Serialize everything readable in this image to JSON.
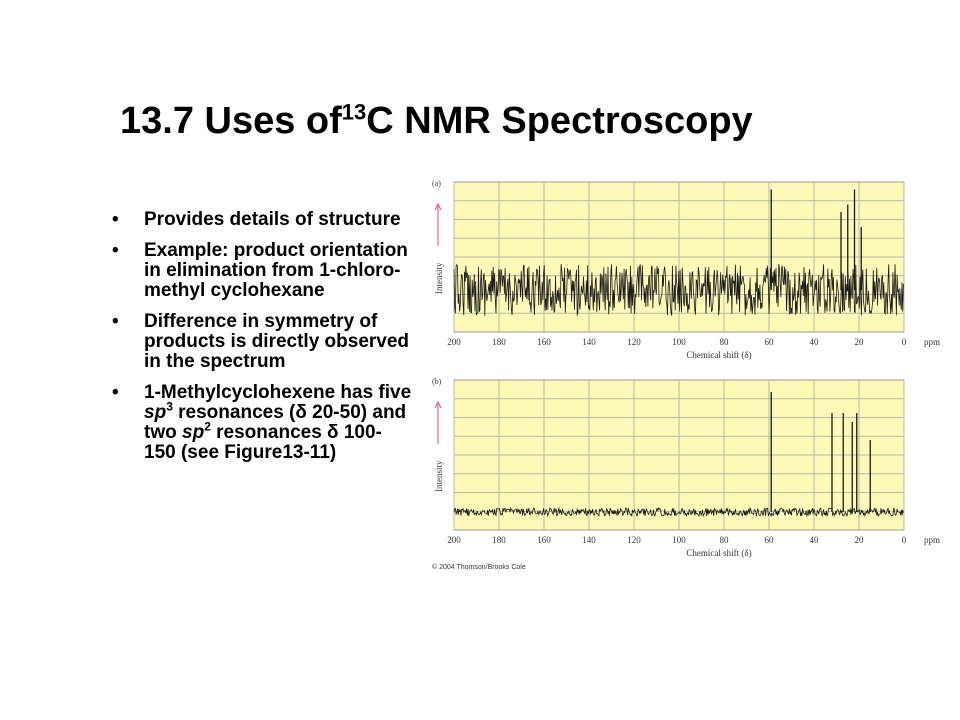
{
  "title": {
    "prefix": "13.7 Uses of",
    "sup": "13",
    "suffix": "C NMR Spectroscopy"
  },
  "bullets": [
    {
      "parts": [
        "Provides details of structure"
      ]
    },
    {
      "parts": [
        "Example: product orientation in elimination from 1-chloro-methyl cyclohexane"
      ]
    },
    {
      "parts": [
        "Difference in symmetry of products is directly observed in the spectrum"
      ]
    },
    {
      "parts": [
        "1-Methylcyclohexene has five ",
        "sp",
        "3",
        " resonances (δ 20-50) and two ",
        "sp",
        "2",
        " resonances  δ 100-150 (see Figure13-11)"
      ]
    }
  ],
  "colors": {
    "plot_bg": "#fdfab8",
    "grid": "#b9b9a6",
    "trace": "#1a1a1a",
    "arrow": "#d9478f"
  },
  "chart_data": [
    {
      "type": "line",
      "panel_label": "(a)",
      "ylabel": "Intensity",
      "xlabel": "Chemical shift (δ)",
      "x_unit": "ppm",
      "x_ticks": [
        "200",
        "180",
        "160",
        "140",
        "120",
        "100",
        "80",
        "60",
        "40",
        "20",
        "0"
      ],
      "xlim": [
        200,
        0
      ],
      "noise": "high",
      "peaks": [
        {
          "x": 59,
          "height": 0.95
        },
        {
          "x": 28,
          "height": 0.8
        },
        {
          "x": 25,
          "height": 0.85
        },
        {
          "x": 22,
          "height": 0.95
        },
        {
          "x": 19,
          "height": 0.7
        }
      ]
    },
    {
      "type": "line",
      "panel_label": "(b)",
      "ylabel": "Intensity",
      "xlabel": "Chemical shift (δ)",
      "x_unit": "ppm",
      "x_ticks": [
        "200",
        "180",
        "160",
        "140",
        "120",
        "100",
        "80",
        "60",
        "40",
        "20",
        "0"
      ],
      "xlim": [
        200,
        0
      ],
      "noise": "low",
      "peaks": [
        {
          "x": 59,
          "height": 0.92
        },
        {
          "x": 32,
          "height": 0.78
        },
        {
          "x": 27,
          "height": 0.78
        },
        {
          "x": 23,
          "height": 0.72
        },
        {
          "x": 21,
          "height": 0.78
        },
        {
          "x": 15,
          "height": 0.6
        }
      ]
    }
  ],
  "copyright": "© 2004 Thomson/Brooks Cole"
}
